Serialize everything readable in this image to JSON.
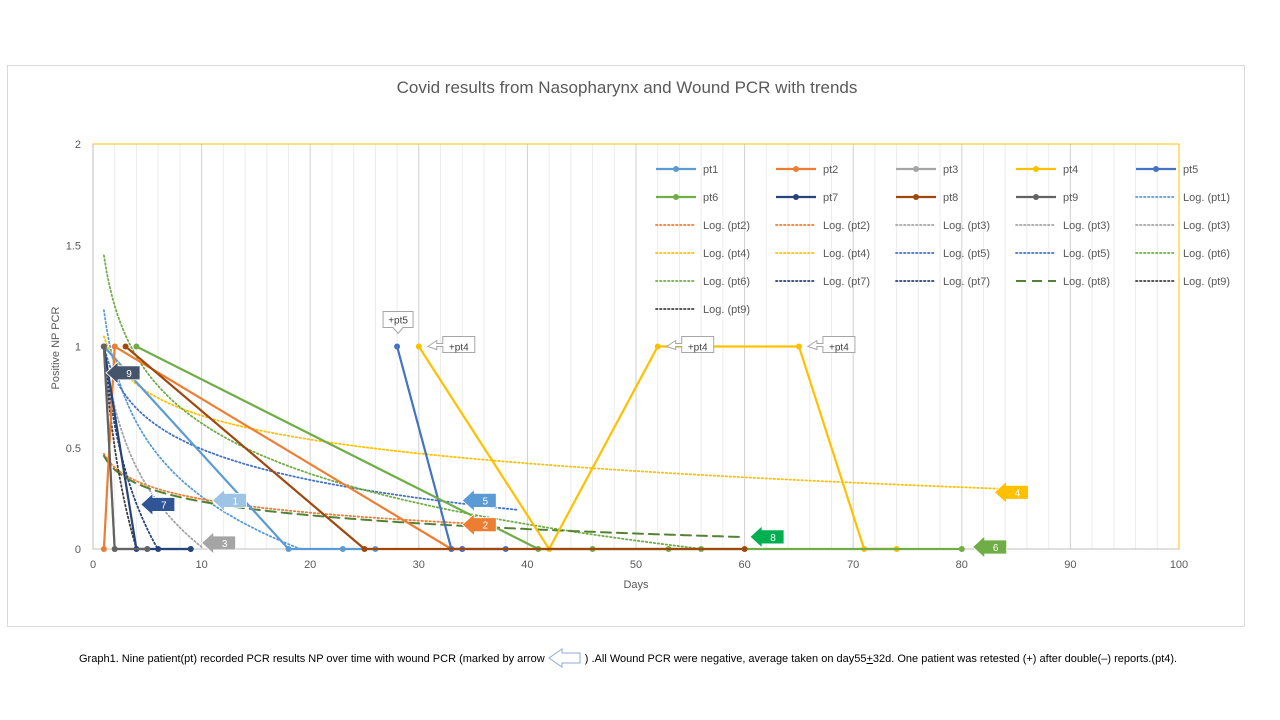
{
  "chart_data": {
    "type": "line",
    "title": "Covid results from Nasopharynx and Wound PCR with trends",
    "xlabel": "Days",
    "ylabel": "Positive NP PCR",
    "xlim": [
      0,
      100
    ],
    "ylim": [
      0,
      2
    ],
    "xticks": [
      "0",
      "10",
      "20",
      "30",
      "40",
      "50",
      "60",
      "70",
      "80",
      "90",
      "100"
    ],
    "yticks": [
      "0",
      "0.5",
      "1",
      "1.5",
      "2"
    ],
    "grid": "vertical",
    "legend_position": "top-right",
    "series": [
      {
        "name": "pt1",
        "color": "#5b9bd5",
        "points": [
          [
            1,
            1
          ],
          [
            18,
            0
          ],
          [
            23,
            0
          ],
          [
            26,
            0
          ]
        ]
      },
      {
        "name": "pt2",
        "color": "#ed7d31",
        "points": [
          [
            1,
            0
          ],
          [
            2,
            1
          ],
          [
            33,
            0
          ],
          [
            34,
            0
          ]
        ]
      },
      {
        "name": "pt3",
        "color": "#a5a5a5",
        "points": [
          [
            1,
            1
          ],
          [
            2,
            0
          ],
          [
            5,
            0
          ],
          [
            9,
            0
          ]
        ]
      },
      {
        "name": "pt4",
        "color": "#ffc000",
        "points": [
          [
            30,
            1
          ],
          [
            42,
            0
          ],
          [
            52,
            1
          ],
          [
            65,
            1
          ],
          [
            71,
            0
          ],
          [
            74,
            0
          ]
        ]
      },
      {
        "name": "pt5",
        "color": "#4472c4",
        "points": [
          [
            28,
            1
          ],
          [
            33,
            0
          ],
          [
            34,
            0
          ],
          [
            38,
            0
          ]
        ]
      },
      {
        "name": "pt6",
        "color": "#70ad47",
        "points": [
          [
            4,
            1
          ],
          [
            41,
            0
          ],
          [
            46,
            0
          ],
          [
            53,
            0
          ],
          [
            56,
            0
          ],
          [
            80,
            0
          ]
        ]
      },
      {
        "name": "pt7",
        "color": "#264478",
        "points": [
          [
            1,
            1
          ],
          [
            4,
            0
          ],
          [
            6,
            0
          ],
          [
            9,
            0
          ]
        ]
      },
      {
        "name": "pt8",
        "color": "#9e480e",
        "points": [
          [
            3,
            1
          ],
          [
            25,
            0
          ],
          [
            60,
            0
          ]
        ]
      },
      {
        "name": "pt9",
        "color": "#636363",
        "points": [
          [
            1,
            1
          ],
          [
            2,
            0
          ],
          [
            5,
            0
          ]
        ]
      }
    ],
    "legend": [
      "pt1",
      "pt2",
      "pt3",
      "pt4",
      "pt5",
      "pt6",
      "pt7",
      "pt8",
      "pt9",
      "Log. (pt1)",
      "Log. (pt2)",
      "Log. (pt2)",
      "Log. (pt3)",
      "Log. (pt3)",
      "Log. (pt3)",
      "Log. (pt4)",
      "Log. (pt4)",
      "Log. (pt5)",
      "Log. (pt5)",
      "Log. (pt6)",
      "Log. (pt6)",
      "Log. (pt7)",
      "Log. (pt7)",
      "Log. (pt8)",
      "Log. (pt9)",
      "Log. (pt9)"
    ],
    "trendlines": [
      {
        "series": "pt1",
        "color": "#5b9bd5",
        "a": 1.18,
        "b": 0.4,
        "xmax": 20
      },
      {
        "series": "pt2",
        "color": "#ed7d31",
        "a": 0.47,
        "b": 0.097,
        "xmax": 36
      },
      {
        "series": "pt3",
        "color": "#a5a5a5",
        "a": 1.0,
        "b": 0.43,
        "xmax": 10
      },
      {
        "series": "pt4",
        "color": "#ffc000",
        "a": 1.05,
        "b": 0.17,
        "xmax": 84
      },
      {
        "series": "pt5",
        "color": "#4472c4",
        "a": 1.0,
        "b": 0.22,
        "xmax": 39
      },
      {
        "series": "pt6",
        "color": "#70ad47",
        "a": 1.45,
        "b": 0.36,
        "xmax": 56
      },
      {
        "series": "pt7",
        "color": "#264478",
        "a": 1.0,
        "b": 0.56,
        "xmax": 6
      },
      {
        "series": "pt8",
        "color": "#548235",
        "a": 0.46,
        "b": 0.098,
        "xmax": 60,
        "dashed": true
      },
      {
        "series": "pt9",
        "color": "#404040",
        "a": 1.0,
        "b": 0.72,
        "xmax": 4
      }
    ],
    "annotations": [
      {
        "text": "+pt5",
        "x": 28,
        "y": 1,
        "box": "above"
      },
      {
        "text": "+pt4",
        "x": 30,
        "y": 1,
        "box": "right"
      },
      {
        "text": "+pt4",
        "x": 52,
        "y": 1,
        "box": "right"
      },
      {
        "text": "+pt4",
        "x": 65,
        "y": 1,
        "box": "right"
      }
    ],
    "arrows": [
      {
        "label": "1",
        "x": 11,
        "y": 0.24,
        "color": "#9dc3e6"
      },
      {
        "label": "2",
        "x": 34,
        "y": 0.12,
        "color": "#ed7d31"
      },
      {
        "label": "3",
        "x": 10,
        "y": 0.03,
        "color": "#a5a5a5"
      },
      {
        "label": "4",
        "x": 83,
        "y": 0.28,
        "color": "#ffc000"
      },
      {
        "label": "5",
        "x": 34,
        "y": 0.24,
        "color": "#5b9bd5"
      },
      {
        "label": "6",
        "x": 81,
        "y": 0.01,
        "color": "#70ad47"
      },
      {
        "label": "7",
        "x": 4.4,
        "y": 0.22,
        "color": "#2f5597"
      },
      {
        "label": "8",
        "x": 60.5,
        "y": 0.06,
        "color": "#00b050"
      },
      {
        "label": "9",
        "x": 1.2,
        "y": 0.87,
        "color": "#44546a"
      }
    ]
  },
  "caption": {
    "part1": "Graph1. Nine patient(pt) recorded PCR results NP over time with  wound PCR (marked by arrow",
    "part2": ") .All Wound PCR were negative, average  taken on day55",
    "pm": "+",
    "part3": "32d. One patient was retested  (+) after double(–) reports.(pt4)."
  }
}
